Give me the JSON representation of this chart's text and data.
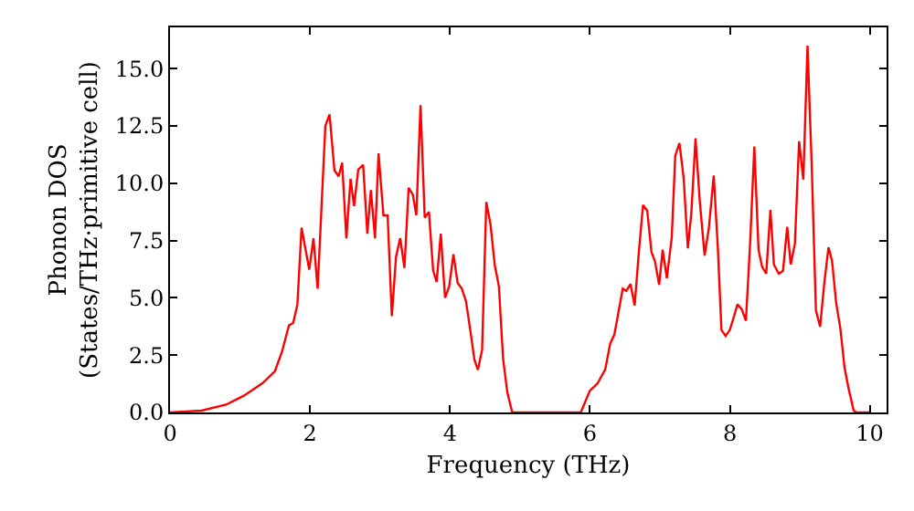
{
  "chart_data": {
    "type": "line",
    "xlabel": "Frequency (THz)",
    "ylabel": "Phonon DOS\n(States/THz·primitive cell)",
    "xlim": [
      0,
      10.24
    ],
    "ylim": [
      0,
      16.8
    ],
    "xticks": [
      0,
      2,
      4,
      6,
      8,
      10
    ],
    "yticks": [
      {
        "value": 0,
        "label": "0.0"
      },
      {
        "value": 2.5,
        "label": "2.5"
      },
      {
        "value": 5,
        "label": "5.0"
      },
      {
        "value": 7.5,
        "label": "7.5"
      },
      {
        "value": 10,
        "label": "10.0"
      },
      {
        "value": 12.5,
        "label": "12.5"
      },
      {
        "value": 15,
        "label": "15.0"
      }
    ],
    "grid": false,
    "marker": "none",
    "line_style": "solid",
    "series": [
      {
        "color": "#ff0000",
        "x": [
          0,
          0.45,
          0.8,
          1.06,
          1.32,
          1.5,
          1.6,
          1.7,
          1.76,
          1.82,
          1.88,
          1.99,
          2.05,
          2.11,
          2.22,
          2.28,
          2.35,
          2.41,
          2.46,
          2.52,
          2.58,
          2.63,
          2.69,
          2.76,
          2.82,
          2.87,
          2.93,
          2.98,
          3.05,
          3.11,
          3.17,
          3.23,
          3.29,
          3.35,
          3.41,
          3.47,
          3.52,
          3.58,
          3.64,
          3.7,
          3.76,
          3.81,
          3.87,
          3.93,
          3.99,
          4.05,
          4.11,
          4.17,
          4.23,
          4.3,
          4.35,
          4.4,
          4.46,
          4.52,
          4.58,
          4.64,
          4.7,
          4.76,
          4.82,
          4.89,
          5.87,
          6.0,
          6.11,
          6.22,
          6.29,
          6.35,
          6.41,
          6.47,
          6.52,
          6.58,
          6.64,
          6.7,
          6.76,
          6.82,
          6.88,
          6.93,
          6.99,
          7.04,
          7.1,
          7.17,
          7.22,
          7.28,
          7.34,
          7.4,
          7.45,
          7.51,
          7.57,
          7.64,
          7.7,
          7.77,
          7.83,
          7.88,
          7.94,
          8.0,
          8.06,
          8.11,
          8.17,
          8.23,
          8.29,
          8.35,
          8.41,
          8.46,
          8.52,
          8.58,
          8.63,
          8.7,
          8.76,
          8.82,
          8.87,
          8.93,
          8.99,
          9.05,
          9.11,
          9.17,
          9.23,
          9.29,
          9.35,
          9.41,
          9.46,
          9.52,
          9.58,
          9.64,
          9.7,
          9.77,
          9.81,
          10.0
        ],
        "values": [
          0,
          0.08,
          0.34,
          0.74,
          1.27,
          1.8,
          2.65,
          3.8,
          3.9,
          4.7,
          8.06,
          6.23,
          7.6,
          5.4,
          12.5,
          13.0,
          10.56,
          10.3,
          10.9,
          7.6,
          10.2,
          9.0,
          10.6,
          10.8,
          7.8,
          9.7,
          7.6,
          11.3,
          8.6,
          8.6,
          4.2,
          6.8,
          7.6,
          6.3,
          9.8,
          9.5,
          8.6,
          13.4,
          8.5,
          8.75,
          6.2,
          5.7,
          7.8,
          5.0,
          5.5,
          6.9,
          5.65,
          5.4,
          4.85,
          3.4,
          2.3,
          1.86,
          2.73,
          9.18,
          8.2,
          6.45,
          5.5,
          2.33,
          0.88,
          0,
          0,
          0.95,
          1.27,
          1.88,
          3.0,
          3.4,
          4.4,
          5.4,
          5.3,
          5.6,
          4.67,
          7.0,
          9.05,
          8.8,
          7.0,
          6.6,
          5.57,
          7.1,
          5.86,
          7.64,
          11.2,
          11.75,
          10.24,
          7.16,
          8.7,
          11.96,
          9.23,
          6.84,
          8.04,
          10.34,
          7.1,
          3.6,
          3.34,
          3.6,
          4.2,
          4.72,
          4.5,
          4.0,
          7.37,
          11.6,
          7.1,
          6.37,
          6.05,
          8.83,
          6.45,
          6.05,
          6.18,
          8.1,
          6.45,
          7.37,
          11.83,
          10.16,
          16.0,
          10.8,
          4.46,
          3.74,
          5.65,
          7.2,
          6.63,
          4.77,
          3.66,
          1.94,
          1.0,
          0.08,
          0,
          0
        ]
      }
    ]
  }
}
